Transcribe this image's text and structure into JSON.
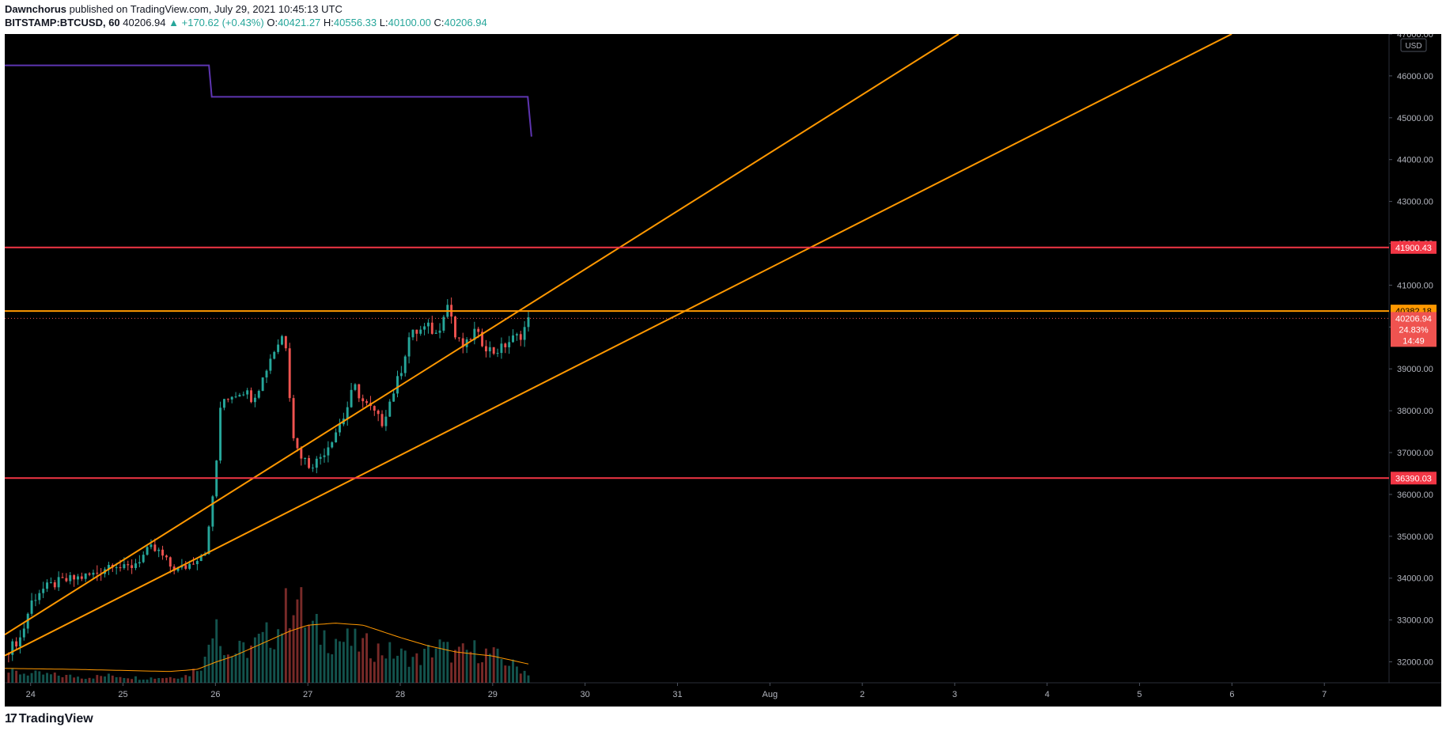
{
  "header": {
    "author": "Dawnchorus",
    "published_text": " published on TradingView.com, July 29, 2021 10:45:13 UTC"
  },
  "symbol_bar": {
    "symbol": "BITSTAMP:BTCUSD, 60",
    "last": "40206.94",
    "change": "▲ +170.62 (+0.43%)",
    "open_label": "O:",
    "open": "40421.27",
    "high_label": "H:",
    "high": "40556.33",
    "low_label": "L:",
    "low": "40100.00",
    "close_label": "C:",
    "close": "40206.94"
  },
  "footer": {
    "brand": "TradingView",
    "logo_mark": "17"
  },
  "colors": {
    "background": "#000000",
    "up": "#26a69a",
    "down": "#ef5350",
    "orange": "#ff9800",
    "red_level": "#f23645",
    "purple": "#5e35b1",
    "grid_text": "#b2b5be"
  },
  "chart_data": {
    "type": "candlestick",
    "timeframe": "60",
    "currency_label": "USD",
    "y_ticks": [
      "32000.00",
      "33000.00",
      "34000.00",
      "35000.00",
      "36000.00",
      "37000.00",
      "38000.00",
      "39000.00",
      "40000.00",
      "41000.00",
      "42000.00",
      "43000.00",
      "44000.00",
      "45000.00",
      "46000.00",
      "47000.00"
    ],
    "ylim": [
      31500,
      47000
    ],
    "x_ticks": [
      "24",
      "25",
      "26",
      "27",
      "28",
      "29",
      "30",
      "31",
      "Aug",
      "2",
      "3",
      "4",
      "5",
      "6",
      "7"
    ],
    "x_tick_days": [
      0,
      1,
      2,
      3,
      4,
      5,
      6,
      7,
      8,
      9,
      10,
      11,
      12,
      13,
      14
    ],
    "xlim_days": [
      -0.28,
      14.7
    ],
    "close_path_days": [
      -0.28,
      -0.1,
      0.0,
      0.1,
      0.3,
      0.5,
      0.7,
      0.9,
      1.0,
      1.1,
      1.2,
      1.3,
      1.4,
      1.5,
      1.6,
      1.7,
      1.8,
      1.9,
      1.95,
      2.0,
      2.03,
      2.06,
      2.1,
      2.2,
      2.3,
      2.4,
      2.5,
      2.6,
      2.7,
      2.75,
      2.8,
      2.85,
      2.9,
      2.95,
      3.0,
      3.1,
      3.2,
      3.3,
      3.4,
      3.5,
      3.6,
      3.7,
      3.8,
      3.9,
      4.0,
      4.1,
      4.2,
      4.3,
      4.4,
      4.5,
      4.55,
      4.6,
      4.7,
      4.8,
      4.9,
      5.0,
      5.1,
      5.2,
      5.3,
      5.4
    ],
    "close_path_prices": [
      32200,
      32600,
      33400,
      33700,
      33900,
      34000,
      34100,
      34400,
      34200,
      34300,
      34500,
      34700,
      34600,
      34300,
      34200,
      34300,
      34500,
      34700,
      35500,
      36600,
      37200,
      38200,
      38300,
      38400,
      38500,
      38300,
      38700,
      39300,
      39700,
      39900,
      38500,
      37300,
      37000,
      36900,
      36700,
      36800,
      37100,
      37500,
      37900,
      38600,
      38200,
      38000,
      37700,
      38300,
      38900,
      39800,
      39900,
      40000,
      39800,
      40600,
      40300,
      39700,
      39500,
      39900,
      39600,
      39400,
      39500,
      39700,
      39800,
      40207
    ],
    "volume_path_days": [
      -0.28,
      0.0,
      0.3,
      0.6,
      0.9,
      1.2,
      1.5,
      1.7,
      1.9,
      2.0,
      2.1,
      2.3,
      2.5,
      2.7,
      2.85,
      3.0,
      3.2,
      3.4,
      3.6,
      3.8,
      4.0,
      4.2,
      4.4,
      4.6,
      4.8,
      5.0,
      5.2,
      5.4
    ],
    "volume_path_units": [
      0.12,
      0.1,
      0.08,
      0.06,
      0.08,
      0.05,
      0.06,
      0.08,
      0.25,
      0.9,
      0.3,
      0.35,
      0.45,
      0.6,
      1.0,
      0.6,
      0.5,
      0.45,
      0.4,
      0.35,
      0.3,
      0.25,
      0.4,
      0.3,
      0.35,
      0.3,
      0.2,
      0.1
    ],
    "volume_ma_days": [
      -0.28,
      0.5,
      1.0,
      1.5,
      1.8,
      2.0,
      2.2,
      2.5,
      2.8,
      3.0,
      3.3,
      3.6,
      3.8,
      4.0,
      4.3,
      4.6,
      5.0,
      5.2,
      5.4
    ],
    "volume_ma_units": [
      0.14,
      0.13,
      0.12,
      0.11,
      0.13,
      0.2,
      0.26,
      0.38,
      0.5,
      0.56,
      0.58,
      0.56,
      0.5,
      0.44,
      0.36,
      0.3,
      0.26,
      0.22,
      0.18
    ],
    "horizontal_levels": [
      {
        "price": 41900.43,
        "label": "41900.43",
        "color": "#f23645"
      },
      {
        "price": 40382.18,
        "label": "40382.18",
        "color": "#ff9800"
      },
      {
        "price": 36390.03,
        "label": "36390.03",
        "color": "#f23645"
      }
    ],
    "last_price": {
      "price": 40206.94,
      "label": "40206.94",
      "pct": "24.83%",
      "countdown": "14:49"
    },
    "trend_lines": [
      {
        "d1": -0.28,
        "p1": 32650,
        "d2": 4.0,
        "p2": 38600,
        "extend": true
      },
      {
        "d1": -0.28,
        "p1": 32150,
        "d2": 2.0,
        "p2": 34700,
        "extend": true
      }
    ],
    "indicator_step_line": {
      "days": [
        -0.28,
        1.93,
        1.96,
        5.38,
        5.42
      ],
      "prices": [
        46250,
        46250,
        45500,
        45500,
        44550
      ]
    }
  }
}
